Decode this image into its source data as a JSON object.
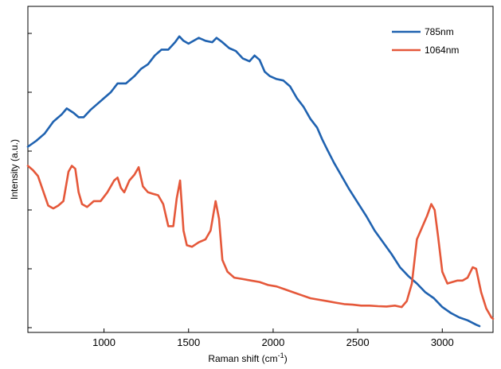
{
  "chart_data": {
    "type": "line",
    "title": "",
    "xlabel_main": "Raman shift (cm",
    "xlabel_sup": "-1",
    "xlabel_tail": ")",
    "ylabel": "Intensity (a.u.)",
    "xlim": [
      550,
      3300
    ],
    "ylim": [
      0,
      1
    ],
    "x_ticks": [
      1000,
      1500,
      2000,
      2500,
      3000
    ],
    "y_tick_values": [
      0.0,
      0.2,
      0.4,
      0.6,
      0.8,
      1.0
    ],
    "y_tick_labels_shown": false,
    "grid": false,
    "legend_position": "top-right",
    "series": [
      {
        "name": "785nm",
        "color": "#1f62b0",
        "points": [
          [
            550,
            0.615
          ],
          [
            600,
            0.635
          ],
          [
            650,
            0.66
          ],
          [
            700,
            0.7
          ],
          [
            750,
            0.725
          ],
          [
            780,
            0.745
          ],
          [
            820,
            0.73
          ],
          [
            850,
            0.715
          ],
          [
            880,
            0.715
          ],
          [
            920,
            0.74
          ],
          [
            960,
            0.76
          ],
          [
            1000,
            0.78
          ],
          [
            1040,
            0.8
          ],
          [
            1080,
            0.83
          ],
          [
            1130,
            0.83
          ],
          [
            1180,
            0.855
          ],
          [
            1220,
            0.88
          ],
          [
            1260,
            0.895
          ],
          [
            1300,
            0.925
          ],
          [
            1340,
            0.945
          ],
          [
            1380,
            0.945
          ],
          [
            1420,
            0.97
          ],
          [
            1445,
            0.99
          ],
          [
            1470,
            0.975
          ],
          [
            1500,
            0.965
          ],
          [
            1530,
            0.975
          ],
          [
            1560,
            0.985
          ],
          [
            1600,
            0.975
          ],
          [
            1640,
            0.97
          ],
          [
            1665,
            0.985
          ],
          [
            1700,
            0.97
          ],
          [
            1740,
            0.95
          ],
          [
            1780,
            0.94
          ],
          [
            1820,
            0.915
          ],
          [
            1860,
            0.905
          ],
          [
            1890,
            0.925
          ],
          [
            1920,
            0.91
          ],
          [
            1950,
            0.87
          ],
          [
            1980,
            0.855
          ],
          [
            2020,
            0.845
          ],
          [
            2060,
            0.84
          ],
          [
            2100,
            0.82
          ],
          [
            2140,
            0.78
          ],
          [
            2180,
            0.75
          ],
          [
            2220,
            0.71
          ],
          [
            2260,
            0.68
          ],
          [
            2290,
            0.64
          ],
          [
            2320,
            0.605
          ],
          [
            2360,
            0.56
          ],
          [
            2400,
            0.52
          ],
          [
            2450,
            0.47
          ],
          [
            2500,
            0.425
          ],
          [
            2550,
            0.38
          ],
          [
            2600,
            0.33
          ],
          [
            2650,
            0.29
          ],
          [
            2700,
            0.25
          ],
          [
            2750,
            0.205
          ],
          [
            2800,
            0.175
          ],
          [
            2850,
            0.15
          ],
          [
            2900,
            0.12
          ],
          [
            2950,
            0.1
          ],
          [
            3000,
            0.07
          ],
          [
            3050,
            0.05
          ],
          [
            3100,
            0.035
          ],
          [
            3150,
            0.025
          ],
          [
            3200,
            0.01
          ],
          [
            3220,
            0.005
          ]
        ]
      },
      {
        "name": "1064nm",
        "color": "#e5583a",
        "points": [
          [
            550,
            0.55
          ],
          [
            580,
            0.535
          ],
          [
            610,
            0.515
          ],
          [
            640,
            0.465
          ],
          [
            670,
            0.415
          ],
          [
            700,
            0.405
          ],
          [
            730,
            0.415
          ],
          [
            760,
            0.43
          ],
          [
            790,
            0.53
          ],
          [
            810,
            0.55
          ],
          [
            830,
            0.54
          ],
          [
            850,
            0.46
          ],
          [
            870,
            0.42
          ],
          [
            900,
            0.41
          ],
          [
            940,
            0.43
          ],
          [
            980,
            0.43
          ],
          [
            1020,
            0.46
          ],
          [
            1060,
            0.5
          ],
          [
            1080,
            0.51
          ],
          [
            1100,
            0.475
          ],
          [
            1120,
            0.46
          ],
          [
            1150,
            0.5
          ],
          [
            1180,
            0.52
          ],
          [
            1205,
            0.545
          ],
          [
            1230,
            0.48
          ],
          [
            1260,
            0.46
          ],
          [
            1290,
            0.455
          ],
          [
            1320,
            0.45
          ],
          [
            1350,
            0.42
          ],
          [
            1380,
            0.345
          ],
          [
            1410,
            0.345
          ],
          [
            1430,
            0.44
          ],
          [
            1450,
            0.5
          ],
          [
            1470,
            0.33
          ],
          [
            1490,
            0.28
          ],
          [
            1520,
            0.275
          ],
          [
            1560,
            0.29
          ],
          [
            1600,
            0.3
          ],
          [
            1630,
            0.33
          ],
          [
            1660,
            0.43
          ],
          [
            1680,
            0.37
          ],
          [
            1700,
            0.23
          ],
          [
            1730,
            0.19
          ],
          [
            1770,
            0.17
          ],
          [
            1820,
            0.165
          ],
          [
            1870,
            0.16
          ],
          [
            1920,
            0.155
          ],
          [
            1970,
            0.145
          ],
          [
            2020,
            0.14
          ],
          [
            2070,
            0.13
          ],
          [
            2120,
            0.12
          ],
          [
            2170,
            0.11
          ],
          [
            2220,
            0.1
          ],
          [
            2270,
            0.095
          ],
          [
            2320,
            0.09
          ],
          [
            2370,
            0.085
          ],
          [
            2420,
            0.08
          ],
          [
            2470,
            0.078
          ],
          [
            2520,
            0.075
          ],
          [
            2570,
            0.075
          ],
          [
            2620,
            0.073
          ],
          [
            2670,
            0.072
          ],
          [
            2720,
            0.075
          ],
          [
            2760,
            0.07
          ],
          [
            2790,
            0.09
          ],
          [
            2820,
            0.15
          ],
          [
            2850,
            0.3
          ],
          [
            2880,
            0.34
          ],
          [
            2910,
            0.38
          ],
          [
            2935,
            0.42
          ],
          [
            2955,
            0.4
          ],
          [
            2975,
            0.31
          ],
          [
            3000,
            0.19
          ],
          [
            3030,
            0.15
          ],
          [
            3060,
            0.155
          ],
          [
            3090,
            0.16
          ],
          [
            3120,
            0.16
          ],
          [
            3150,
            0.17
          ],
          [
            3180,
            0.205
          ],
          [
            3200,
            0.2
          ],
          [
            3230,
            0.12
          ],
          [
            3260,
            0.065
          ],
          [
            3290,
            0.035
          ],
          [
            3300,
            0.03
          ]
        ]
      }
    ]
  }
}
